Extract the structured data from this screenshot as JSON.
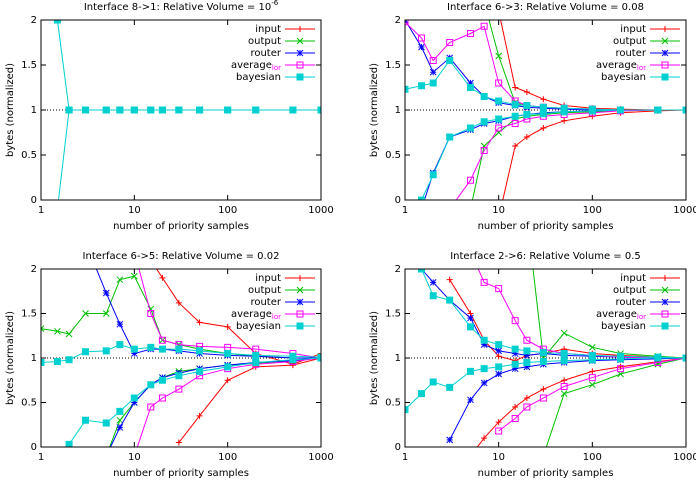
{
  "chart_data": [
    {
      "type": "line",
      "title": "Interface 8->1: Relative Volume = 10",
      "title_exponent": "-6",
      "x_label": "number of priority samples",
      "y_label": "bytes (normalized)",
      "xscale": "log",
      "xlim": [
        1,
        1000
      ],
      "ylim": [
        0,
        2
      ],
      "xticks": [
        1,
        10,
        100,
        1000
      ],
      "yticks": [
        0,
        0.5,
        1,
        1.5,
        2
      ],
      "reference_line": 1,
      "legend": "upper right",
      "x": [
        1,
        1.5,
        2,
        3,
        5,
        7,
        10,
        15,
        20,
        30,
        50,
        100,
        200,
        500,
        1000
      ],
      "series": [
        {
          "name": "input",
          "color": "#ff0000",
          "marker": "plus",
          "values": [
            null,
            null,
            null,
            null,
            null,
            null,
            null,
            null,
            null,
            null,
            null,
            null,
            null,
            null,
            null
          ],
          "values_low": [
            null,
            null,
            null,
            null,
            null,
            null,
            null,
            null,
            null,
            null,
            null,
            null,
            null,
            null,
            null
          ]
        },
        {
          "name": "output",
          "color": "#00c000",
          "marker": "cross",
          "values": [
            null,
            null,
            null,
            null,
            null,
            null,
            null,
            null,
            null,
            null,
            null,
            null,
            null,
            null,
            1
          ],
          "values_low": [
            null,
            null,
            null,
            null,
            null,
            null,
            null,
            null,
            null,
            null,
            null,
            null,
            null,
            null,
            1
          ]
        },
        {
          "name": "router",
          "color": "#0000ff",
          "marker": "star",
          "values": [
            null,
            null,
            null,
            null,
            null,
            null,
            null,
            null,
            null,
            null,
            null,
            null,
            null,
            null,
            null
          ],
          "values_low": [
            null,
            null,
            null,
            null,
            null,
            null,
            null,
            null,
            null,
            null,
            null,
            null,
            null,
            null,
            null
          ]
        },
        {
          "name": "average",
          "name_subscript": "lor",
          "color": "#ff00ff",
          "marker": "square",
          "values": [
            null,
            null,
            null,
            null,
            null,
            null,
            null,
            null,
            null,
            null,
            null,
            null,
            null,
            null,
            null
          ],
          "values_low": [
            null,
            null,
            null,
            null,
            null,
            null,
            null,
            null,
            null,
            null,
            null,
            null,
            null,
            null,
            null
          ]
        },
        {
          "name": "bayesian",
          "color": "#00d0d0",
          "marker": "filled-square",
          "values": [
            null,
            2.0,
            1,
            1,
            1,
            1,
            1,
            1,
            1,
            1,
            1,
            1,
            1,
            1,
            1
          ],
          "values_low": [
            null,
            -0.1,
            1,
            1,
            1,
            1,
            1,
            1,
            1,
            1,
            1,
            1,
            1,
            1,
            1
          ]
        }
      ]
    },
    {
      "type": "line",
      "title": "Interface 6->3: Relative Volume = 0.08",
      "x_label": "number of priority samples",
      "y_label": "bytes (normalized)",
      "xscale": "log",
      "xlim": [
        1,
        1000
      ],
      "ylim": [
        0,
        2
      ],
      "xticks": [
        1,
        10,
        100,
        1000
      ],
      "yticks": [
        0,
        0.5,
        1,
        1.5,
        2
      ],
      "reference_line": 1,
      "legend": "upper right",
      "x": [
        1,
        1.5,
        2,
        3,
        5,
        7,
        10,
        15,
        20,
        30,
        50,
        100,
        200,
        500,
        1000
      ],
      "series": [
        {
          "name": "input",
          "color": "#ff0000",
          "marker": "plus",
          "values": [
            null,
            null,
            null,
            null,
            null,
            null,
            2.1,
            1.25,
            1.2,
            1.12,
            1.05,
            1.02,
            1.01,
            1.0,
            1.0
          ],
          "values_low": [
            null,
            null,
            null,
            null,
            null,
            null,
            -0.2,
            0.6,
            0.7,
            0.8,
            0.88,
            0.93,
            0.97,
            0.99,
            1.0
          ]
        },
        {
          "name": "output",
          "color": "#00c000",
          "marker": "cross",
          "values": [
            null,
            null,
            null,
            null,
            null,
            2.2,
            1.6,
            1.08,
            1.05,
            1.03,
            1.02,
            1.01,
            1.0,
            1.0,
            1.0
          ],
          "values_low": [
            null,
            null,
            null,
            null,
            -0.1,
            0.6,
            0.75,
            0.9,
            0.93,
            0.95,
            0.97,
            0.98,
            0.99,
            1.0,
            1.0
          ]
        },
        {
          "name": "router",
          "color": "#0000ff",
          "marker": "star",
          "values": [
            2.0,
            1.7,
            1.42,
            1.58,
            1.3,
            1.15,
            1.08,
            1.05,
            1.03,
            1.02,
            1.01,
            1.0,
            1.0,
            1.0,
            1.0
          ],
          "values_low": [
            null,
            -0.1,
            0.3,
            0.7,
            0.78,
            0.85,
            0.88,
            0.93,
            0.95,
            0.97,
            0.98,
            0.99,
            1.0,
            1.0,
            1.0
          ]
        },
        {
          "name": "average",
          "name_subscript": "lor",
          "color": "#ff00ff",
          "marker": "square",
          "values": [
            1.98,
            1.8,
            1.55,
            1.75,
            1.85,
            1.93,
            1.3,
            1.1,
            1.05,
            1.03,
            1.02,
            1.01,
            1.0,
            1.0,
            1.0
          ],
          "values_low": [
            null,
            null,
            null,
            -0.1,
            0.22,
            0.55,
            0.8,
            0.85,
            0.9,
            0.93,
            0.95,
            0.97,
            0.99,
            1.0,
            1.0
          ]
        },
        {
          "name": "bayesian",
          "color": "#00d0d0",
          "marker": "filled-square",
          "values": [
            1.23,
            1.27,
            1.3,
            1.55,
            1.25,
            1.15,
            1.1,
            1.06,
            1.05,
            1.03,
            1.02,
            1.01,
            1.0,
            1.0,
            1.0
          ],
          "values_low": [
            null,
            0.0,
            0.28,
            0.7,
            0.8,
            0.87,
            0.9,
            0.93,
            0.95,
            0.96,
            0.98,
            0.99,
            1.0,
            1.0,
            1.0
          ]
        }
      ]
    },
    {
      "type": "line",
      "title": "Interface 6->5: Relative Volume = 0.02",
      "x_label": "number of priority samples",
      "y_label": "bytes (normalized)",
      "xscale": "log",
      "xlim": [
        1,
        1000
      ],
      "ylim": [
        0,
        2
      ],
      "xticks": [
        1,
        10,
        100,
        1000
      ],
      "yticks": [
        0,
        0.5,
        1,
        1.5,
        2
      ],
      "reference_line": 1,
      "legend": "upper right",
      "x": [
        1,
        1.5,
        2,
        3,
        5,
        7,
        10,
        15,
        20,
        30,
        50,
        100,
        200,
        500,
        1000
      ],
      "series": [
        {
          "name": "input",
          "color": "#ff0000",
          "marker": "plus",
          "values": [
            null,
            null,
            null,
            null,
            null,
            null,
            null,
            2.1,
            1.9,
            1.62,
            1.4,
            1.35,
            1.05,
            0.93,
            1.05
          ],
          "values_low": [
            null,
            null,
            null,
            null,
            null,
            null,
            null,
            null,
            null,
            0.05,
            0.35,
            0.75,
            0.9,
            0.92,
            1.0
          ]
        },
        {
          "name": "output",
          "color": "#00c000",
          "marker": "cross",
          "values": [
            1.33,
            1.3,
            1.27,
            1.5,
            1.5,
            1.88,
            1.92,
            1.55,
            1.2,
            1.15,
            1.1,
            1.05,
            1.02,
            1.0,
            1.0
          ],
          "values_low": [
            null,
            null,
            null,
            null,
            -0.1,
            0.3,
            0.5,
            0.7,
            0.78,
            0.85,
            0.88,
            0.92,
            0.94,
            0.97,
            1.0
          ]
        },
        {
          "name": "router",
          "color": "#0000ff",
          "marker": "star",
          "values": [
            null,
            null,
            null,
            2.3,
            1.73,
            1.38,
            1.05,
            1.1,
            1.1,
            1.08,
            1.05,
            1.03,
            1.02,
            1.0,
            1.0
          ],
          "values_low": [
            null,
            null,
            null,
            null,
            -0.1,
            0.22,
            0.5,
            0.7,
            0.78,
            0.83,
            0.88,
            0.92,
            0.95,
            0.97,
            1.0
          ]
        },
        {
          "name": "average",
          "name_subscript": "lor",
          "color": "#ff00ff",
          "marker": "square",
          "values": [
            null,
            null,
            null,
            null,
            null,
            null,
            2.2,
            1.5,
            1.2,
            1.15,
            1.13,
            1.12,
            1.1,
            1.05,
            1.0
          ],
          "values_low": [
            null,
            null,
            null,
            null,
            null,
            null,
            -0.1,
            0.45,
            0.55,
            0.65,
            0.8,
            0.88,
            0.93,
            0.96,
            1.0
          ]
        },
        {
          "name": "bayesian",
          "color": "#00d0d0",
          "marker": "filled-square",
          "values": [
            0.95,
            0.96,
            0.98,
            1.07,
            1.08,
            1.15,
            1.1,
            1.12,
            1.1,
            1.1,
            1.08,
            1.05,
            1.03,
            1.02,
            1.01
          ],
          "values_low": [
            null,
            null,
            0.03,
            0.3,
            0.27,
            0.4,
            0.55,
            0.7,
            0.75,
            0.8,
            0.85,
            0.9,
            0.95,
            0.98,
            1.0
          ]
        }
      ]
    },
    {
      "type": "line",
      "title": "Interface 2->6: Relative Volume = 0.5",
      "x_label": "number of priority samples",
      "y_label": "bytes (normalized)",
      "xscale": "log",
      "xlim": [
        1,
        1000
      ],
      "ylim": [
        0,
        2
      ],
      "xticks": [
        1,
        10,
        100,
        1000
      ],
      "yticks": [
        0,
        0.5,
        1,
        1.5,
        2
      ],
      "reference_line": 1,
      "legend": "upper right",
      "x": [
        1,
        1.5,
        2,
        3,
        5,
        7,
        10,
        15,
        20,
        30,
        50,
        100,
        200,
        500,
        1000
      ],
      "series": [
        {
          "name": "input",
          "color": "#ff0000",
          "marker": "plus",
          "values": [
            null,
            null,
            null,
            1.88,
            1.5,
            1.2,
            1.02,
            0.97,
            1.03,
            1.05,
            1.1,
            1.05,
            1.03,
            1.01,
            1.0
          ],
          "values_low": [
            null,
            null,
            null,
            null,
            -0.1,
            0.1,
            0.28,
            0.45,
            0.55,
            0.65,
            0.75,
            0.85,
            0.9,
            0.96,
            1.0
          ]
        },
        {
          "name": "output",
          "color": "#00c000",
          "marker": "cross",
          "values": [
            null,
            null,
            null,
            null,
            null,
            null,
            null,
            null,
            2.6,
            1.0,
            1.28,
            1.12,
            1.05,
            1.02,
            1.0
          ],
          "values_low": [
            null,
            null,
            null,
            null,
            null,
            null,
            null,
            null,
            null,
            -0.1,
            0.6,
            0.7,
            0.82,
            0.93,
            1.0
          ]
        },
        {
          "name": "router",
          "color": "#0000ff",
          "marker": "star",
          "values": [
            2.3,
            2.0,
            1.85,
            1.65,
            1.45,
            1.15,
            1.08,
            1.05,
            1.03,
            1.05,
            1.03,
            1.02,
            1.01,
            1.0,
            1.0
          ],
          "values_low": [
            null,
            null,
            null,
            0.08,
            0.53,
            0.72,
            0.82,
            0.88,
            0.9,
            0.93,
            0.95,
            0.97,
            0.98,
            0.99,
            1.0
          ]
        },
        {
          "name": "average",
          "name_subscript": "lor",
          "color": "#ff00ff",
          "marker": "square",
          "values": [
            null,
            null,
            null,
            null,
            2.2,
            1.85,
            1.78,
            1.42,
            1.2,
            1.1,
            1.05,
            1.03,
            1.01,
            1.0,
            1.0
          ],
          "values_low": [
            null,
            null,
            null,
            null,
            null,
            null,
            0.18,
            0.32,
            0.45,
            0.55,
            0.68,
            0.78,
            0.88,
            0.95,
            1.0
          ]
        },
        {
          "name": "bayesian",
          "color": "#00d0d0",
          "marker": "filled-square",
          "values": [
            null,
            2.0,
            1.7,
            1.65,
            1.35,
            1.2,
            1.15,
            1.1,
            1.08,
            1.06,
            1.05,
            1.03,
            1.02,
            1.01,
            1.0
          ],
          "values_low": [
            0.42,
            0.6,
            0.73,
            0.67,
            0.85,
            0.88,
            0.9,
            0.93,
            0.95,
            0.96,
            0.97,
            0.98,
            0.99,
            1.0,
            1.0
          ]
        }
      ]
    }
  ]
}
